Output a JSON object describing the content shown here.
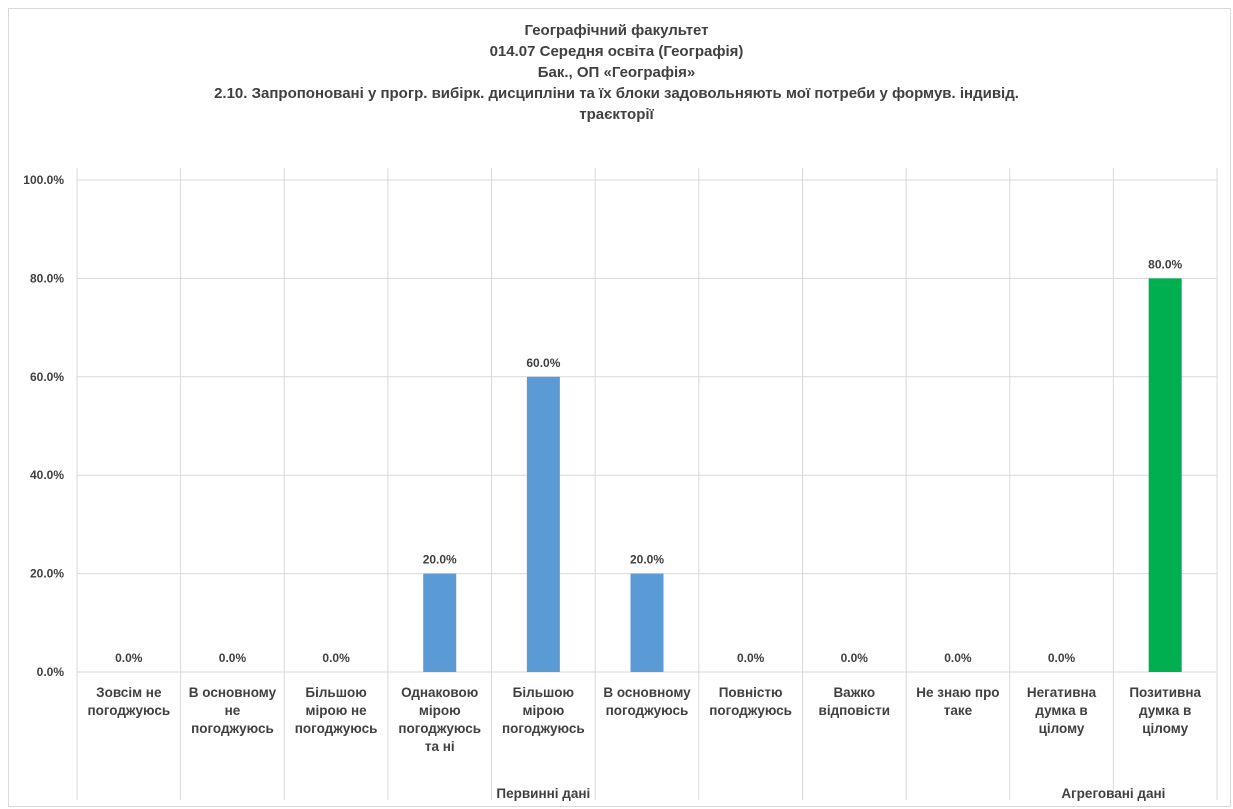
{
  "title": {
    "lines": [
      "Географічний факультет",
      "014.07 Середня освіта (Географія)",
      "Бак., ОП «Географія»",
      "2.10. Запропоновані у прогр. вибірк. дисципліни та їх блоки задовольняють мої потреби у формув. індивід.",
      "траєкторії"
    ]
  },
  "chart_data": {
    "type": "bar",
    "title": "Географічний факультет 014.07 Середня освіта (Географія) Бак., ОП «Географія» 2.10. Запропоновані у прогр. вибірк. дисципліни та їх блоки задовольняють мої потреби у формув. індивід. траєкторії",
    "xlabel": "",
    "ylabel": "",
    "ylim": [
      0,
      100
    ],
    "yticks": [
      "0.0%",
      "20.0%",
      "40.0%",
      "60.0%",
      "80.0%",
      "100.0%"
    ],
    "grid": true,
    "legend": "none",
    "categories": [
      [
        "Зовсім не",
        "погоджуюсь"
      ],
      [
        "В основному",
        "не",
        "погоджуюсь"
      ],
      [
        "Більшою",
        "мірою не",
        "погоджуюсь"
      ],
      [
        "Однаковою",
        "мірою",
        "погоджуюсь",
        "та ні"
      ],
      [
        "Більшою",
        "мірою",
        "погоджуюсь"
      ],
      [
        "В основному",
        "погоджуюсь"
      ],
      [
        "Повністю",
        "погоджуюсь"
      ],
      [
        "Важко",
        "відповісти"
      ],
      [
        "Не знаю про",
        "таке"
      ],
      [
        "Негативна",
        "думка в",
        "цілому"
      ],
      [
        "Позитивна",
        "думка в",
        "цілому"
      ]
    ],
    "values": [
      0,
      0,
      0,
      20,
      60,
      20,
      0,
      0,
      0,
      0,
      80
    ],
    "data_labels": [
      "0.0%",
      "0.0%",
      "0.0%",
      "20.0%",
      "60.0%",
      "20.0%",
      "0.0%",
      "0.0%",
      "0.0%",
      "0.0%",
      "80.0%"
    ],
    "groups": [
      {
        "label": "Первинні дані",
        "count": 9
      },
      {
        "label": "Агреговані дані",
        "count": 2
      }
    ],
    "colors": {
      "primary": "#5b9bd5",
      "aggregate_positive": "#00b050",
      "grid": "#d9d9d9",
      "text": "#404040"
    }
  }
}
